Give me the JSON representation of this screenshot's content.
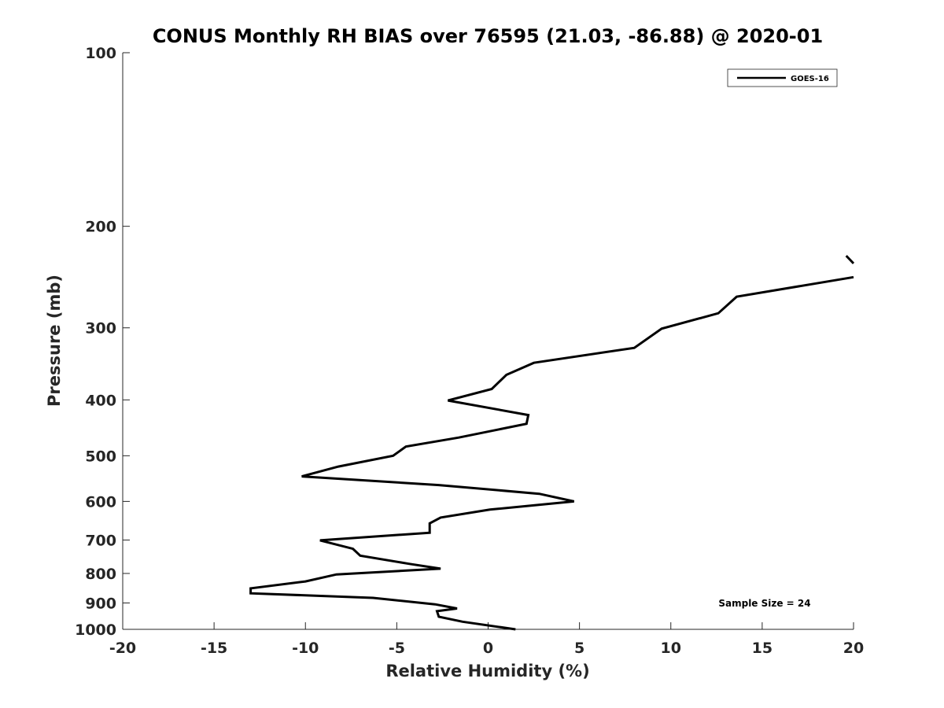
{
  "chart_data": {
    "type": "line",
    "title": "CONUS Monthly RH BIAS over 76595 (21.03, -86.88) @ 2020-01",
    "xlabel": "Relative Humidity (%)",
    "ylabel": "Pressure (mb)",
    "xlim": [
      -20,
      20
    ],
    "ylim": [
      100,
      1000
    ],
    "yscale": "log",
    "yreversed": true,
    "xticks": [
      -20,
      -15,
      -10,
      -5,
      0,
      5,
      10,
      15,
      20
    ],
    "xtick_labels": [
      "-20",
      "-15",
      "-10",
      "-5",
      "0",
      "5",
      "10",
      "15",
      "20"
    ],
    "yticks": [
      100,
      200,
      300,
      400,
      500,
      600,
      700,
      800,
      900,
      1000
    ],
    "ytick_labels": [
      "100",
      "200",
      "300",
      "400",
      "500",
      "600",
      "700",
      "800",
      "900",
      "1000"
    ],
    "grid": false,
    "legend_position": "top-right",
    "annotation": "Sample Size = 24",
    "series": [
      {
        "name": "GOES-16",
        "color": "#000000",
        "segments": [
          [
            [
              19.6,
              225
            ],
            [
              20.0,
              232
            ]
          ],
          [
            [
              20.0,
              245
            ],
            [
              13.6,
              265
            ],
            [
              12.6,
              283
            ],
            [
              9.5,
              301
            ],
            [
              8.0,
              325
            ],
            [
              2.5,
              345
            ],
            [
              1.0,
              362
            ],
            [
              0.2,
              383
            ],
            [
              -2.2,
              401
            ],
            [
              2.2,
              425
            ],
            [
              2.1,
              440
            ],
            [
              -1.6,
              465
            ],
            [
              -4.5,
              482
            ],
            [
              -5.2,
              500
            ],
            [
              -8.2,
              522
            ],
            [
              -10.2,
              543
            ],
            [
              -2.7,
              562
            ],
            [
              2.8,
              582
            ],
            [
              4.7,
              600
            ],
            [
              0.1,
              620
            ],
            [
              -2.6,
              640
            ],
            [
              -3.2,
              655
            ],
            [
              -3.2,
              680
            ],
            [
              -9.2,
              701
            ],
            [
              -7.4,
              725
            ],
            [
              -7.0,
              745
            ],
            [
              -4.3,
              770
            ],
            [
              -2.6,
              785
            ],
            [
              -8.3,
              803
            ],
            [
              -10.0,
              826
            ],
            [
              -13.0,
              849
            ],
            [
              -13.0,
              866
            ],
            [
              -6.3,
              882
            ],
            [
              -2.9,
              905
            ],
            [
              -1.7,
              920
            ],
            [
              -2.8,
              930
            ],
            [
              -2.7,
              951
            ],
            [
              -1.4,
              970
            ],
            [
              1.5,
              1000
            ]
          ]
        ]
      }
    ]
  }
}
